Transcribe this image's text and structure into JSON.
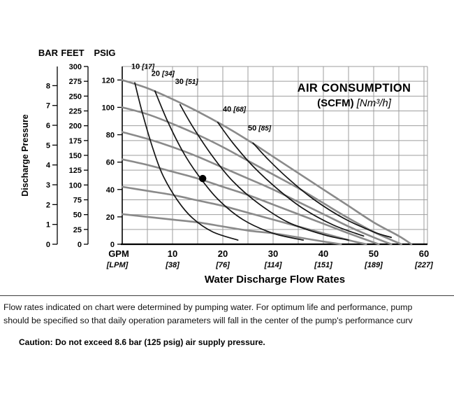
{
  "scale_headers": {
    "bar": "BAR",
    "feet": "FEET",
    "psig": "PSIG"
  },
  "y_axis_title": "Discharge Pressure",
  "chart_data": {
    "type": "line",
    "title": "AIR CONSUMPTION",
    "subtitle_bold": "(SCFM)",
    "subtitle_italic": "[Nm³/h]",
    "x_axis": {
      "unit_primary": "GPM",
      "unit_secondary": "[LPM]",
      "title": "Water Discharge Flow Rates",
      "gpm_ticks": [
        10,
        20,
        30,
        40,
        50,
        60
      ],
      "lpm_ticks": [
        "[38]",
        "[76]",
        "[114]",
        "[151]",
        "[189]",
        "[227]"
      ],
      "range_gpm": [
        0,
        61
      ]
    },
    "y_axis": {
      "bar_ticks": [
        0,
        1,
        2,
        3,
        4,
        5,
        6,
        7,
        8
      ],
      "feet_ticks": [
        0,
        25,
        50,
        75,
        100,
        125,
        150,
        175,
        200,
        225,
        250,
        275,
        300
      ],
      "psig_ticks": [
        0,
        20,
        40,
        60,
        80,
        100,
        120
      ],
      "range_feet": [
        0,
        300
      ]
    },
    "grid": {
      "x_step_gpm": 5,
      "y_step_feet": 25
    },
    "performance_curves_psig_vs_gpm": [
      {
        "name": "curve-120-psig",
        "points": [
          [
            0,
            120
          ],
          [
            5,
            114
          ],
          [
            10,
            106
          ],
          [
            15,
            97
          ],
          [
            20,
            87
          ],
          [
            25,
            76
          ],
          [
            30,
            64
          ],
          [
            35,
            52
          ],
          [
            40,
            40
          ],
          [
            45,
            28
          ],
          [
            50,
            16
          ],
          [
            55,
            6
          ],
          [
            57.5,
            0
          ]
        ]
      },
      {
        "name": "curve-100-psig",
        "points": [
          [
            0,
            100
          ],
          [
            5,
            95
          ],
          [
            10,
            88
          ],
          [
            15,
            80
          ],
          [
            20,
            71
          ],
          [
            25,
            61
          ],
          [
            30,
            51
          ],
          [
            35,
            41
          ],
          [
            40,
            30
          ],
          [
            45,
            19
          ],
          [
            50,
            9
          ],
          [
            55.5,
            0
          ]
        ]
      },
      {
        "name": "curve-80-psig",
        "points": [
          [
            0,
            82
          ],
          [
            5,
            77
          ],
          [
            10,
            71
          ],
          [
            15,
            64
          ],
          [
            20,
            56
          ],
          [
            25,
            48
          ],
          [
            30,
            40
          ],
          [
            35,
            31
          ],
          [
            40,
            22
          ],
          [
            45,
            13
          ],
          [
            50,
            5
          ],
          [
            53.5,
            0
          ]
        ]
      },
      {
        "name": "curve-60-psig",
        "points": [
          [
            0,
            62
          ],
          [
            5,
            58
          ],
          [
            10,
            53
          ],
          [
            15,
            48
          ],
          [
            20,
            42
          ],
          [
            25,
            36
          ],
          [
            30,
            29
          ],
          [
            35,
            22
          ],
          [
            40,
            15
          ],
          [
            45,
            8
          ],
          [
            51,
            0
          ]
        ]
      },
      {
        "name": "curve-40-psig",
        "points": [
          [
            0,
            42
          ],
          [
            5,
            39
          ],
          [
            10,
            36
          ],
          [
            15,
            32
          ],
          [
            20,
            28
          ],
          [
            25,
            23
          ],
          [
            30,
            18
          ],
          [
            35,
            13
          ],
          [
            40,
            8
          ],
          [
            45,
            3
          ],
          [
            48.5,
            0
          ]
        ]
      },
      {
        "name": "curve-20-psig",
        "points": [
          [
            0,
            22
          ],
          [
            5,
            20
          ],
          [
            10,
            18
          ],
          [
            15,
            16
          ],
          [
            20,
            13
          ],
          [
            25,
            10
          ],
          [
            30,
            8
          ],
          [
            35,
            5
          ],
          [
            40,
            2
          ],
          [
            43.5,
            0
          ]
        ]
      }
    ],
    "air_consumption_curves": [
      {
        "scfm": "10",
        "nm3h": "[17]",
        "label_at": [
          1.8,
          128
        ],
        "points": [
          [
            2.5,
            118
          ],
          [
            4,
            96
          ],
          [
            6,
            71
          ],
          [
            8,
            51
          ],
          [
            11,
            32
          ],
          [
            14,
            19
          ],
          [
            18,
            9
          ],
          [
            23,
            3
          ]
        ]
      },
      {
        "scfm": "20",
        "nm3h": "[34]",
        "label_at": [
          5.8,
          123
        ],
        "points": [
          [
            6.5,
            112
          ],
          [
            9,
            90
          ],
          [
            12,
            68
          ],
          [
            15,
            51
          ],
          [
            19,
            33
          ],
          [
            24,
            18
          ],
          [
            30,
            8
          ],
          [
            36,
            3
          ]
        ]
      },
      {
        "scfm": "30",
        "nm3h": "[51]",
        "label_at": [
          10.5,
          117
        ],
        "points": [
          [
            11.5,
            102
          ],
          [
            14,
            86
          ],
          [
            18,
            64
          ],
          [
            22,
            46
          ],
          [
            27,
            30
          ],
          [
            33,
            16
          ],
          [
            40,
            7
          ],
          [
            45,
            3
          ]
        ]
      },
      {
        "scfm": "40",
        "nm3h": "[68]",
        "label_at": [
          20,
          97
        ],
        "points": [
          [
            19,
            89
          ],
          [
            22,
            74
          ],
          [
            26,
            57
          ],
          [
            31,
            40
          ],
          [
            36,
            26
          ],
          [
            42,
            14
          ],
          [
            48,
            6
          ]
        ]
      },
      {
        "scfm": "50",
        "nm3h": "[85]",
        "label_at": [
          25,
          83
        ],
        "points": [
          [
            26,
            74
          ],
          [
            29,
            62
          ],
          [
            33,
            48
          ],
          [
            38,
            33
          ],
          [
            44,
            19
          ],
          [
            50,
            9
          ],
          [
            53.5,
            5
          ]
        ]
      }
    ],
    "operating_point": {
      "gpm": 16,
      "psig": 48
    },
    "colors": {
      "performance_curve": "#8a8a8a",
      "air_curve": "#141414",
      "grid": "#9e9e9e",
      "axis": "#000000"
    }
  },
  "footer": {
    "line1": "Flow rates indicated on chart were determined by pumping water. For optimum life and performance, pump",
    "line2": "should be specified so that daily operation parameters will fall in the center of the pump's performance curv",
    "caution": "Caution: Do not exceed 8.6 bar (125 psig) air supply pressure."
  }
}
